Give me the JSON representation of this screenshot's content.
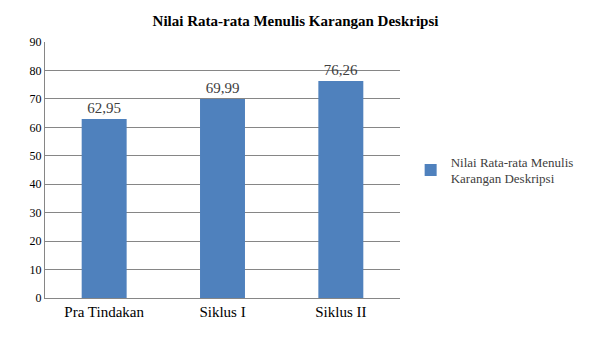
{
  "chart_data": {
    "type": "bar",
    "title": "Nilai Rata-rata Menulis Karangan Deskripsi",
    "categories": [
      "Pra Tindakan",
      "Siklus I",
      "Siklus II"
    ],
    "series": [
      {
        "name": "Nilai Rata-rata Menulis Karangan Deskripsi",
        "color": "#4f81bd",
        "values": [
          62.95,
          69.99,
          76.26
        ],
        "value_labels": [
          "62,95",
          "69,99",
          "76,26"
        ]
      }
    ],
    "ylim": [
      0,
      90
    ],
    "yticks": [
      0,
      10,
      20,
      30,
      40,
      50,
      60,
      70,
      80,
      90
    ],
    "grid": true,
    "legend": "right",
    "data_labels": true
  }
}
